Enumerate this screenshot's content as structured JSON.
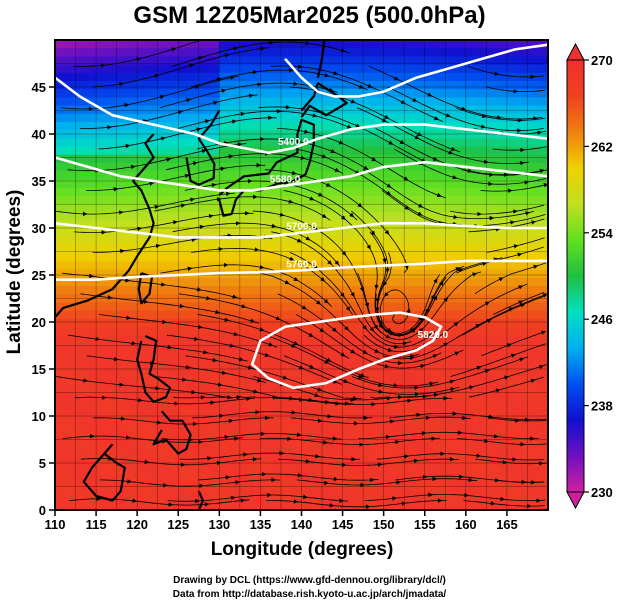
{
  "title": "GSM 12Z05Mar2025 (500.0hPa)",
  "credits": {
    "line1": "Drawing by DCL (https://www.gfd-dennou.org/library/dcl/)",
    "line2": "Data from http://database.rish.kyoto-u.ac.jp/arch/jmadata/"
  },
  "chart_data": {
    "type": "heatmap",
    "title": "GSM 12Z05Mar2025 (500.0hPa)",
    "xlabel": "Longitude (degrees)",
    "ylabel": "Latitude  (degrees)",
    "xlim": [
      110,
      170
    ],
    "ylim": [
      0,
      50
    ],
    "x_ticks": [
      110,
      115,
      120,
      125,
      130,
      135,
      140,
      145,
      150,
      155,
      160,
      165
    ],
    "y_ticks": [
      0,
      5,
      10,
      15,
      20,
      25,
      30,
      35,
      40,
      45
    ],
    "colorbar": {
      "min": 230,
      "max": 270,
      "ticks": [
        230,
        238,
        246,
        254,
        262,
        270
      ],
      "colors": [
        "#d020a0",
        "#7010c0",
        "#1010d0",
        "#0050f0",
        "#00b0f0",
        "#00e0c0",
        "#20c040",
        "#60e020",
        "#c0e020",
        "#f0d000",
        "#f08010",
        "#f04020",
        "#f03030"
      ]
    },
    "contours": [
      {
        "label": "5400.0",
        "points": [
          [
            110,
            46
          ],
          [
            113,
            44
          ],
          [
            117,
            42
          ],
          [
            122,
            41
          ],
          [
            127,
            40
          ],
          [
            130,
            39
          ],
          [
            133,
            38.5
          ],
          [
            136,
            38
          ],
          [
            139,
            38.5
          ],
          [
            142,
            39.5
          ],
          [
            146,
            40.5
          ],
          [
            150,
            41
          ],
          [
            155,
            41
          ],
          [
            160,
            40.5
          ],
          [
            165,
            40
          ],
          [
            170,
            39.5
          ]
        ]
      },
      {
        "label": "5580.0",
        "points": [
          [
            110,
            37.5
          ],
          [
            114,
            36.5
          ],
          [
            118,
            35.5
          ],
          [
            122,
            35
          ],
          [
            126,
            34.5
          ],
          [
            130,
            34
          ],
          [
            134,
            34
          ],
          [
            138,
            34.5
          ],
          [
            142,
            35
          ],
          [
            146,
            35.5
          ],
          [
            150,
            36.5
          ],
          [
            155,
            37
          ],
          [
            160,
            36.5
          ],
          [
            165,
            36
          ],
          [
            170,
            35.5
          ]
        ]
      },
      {
        "label": "5700.0",
        "points": [
          [
            110,
            30.5
          ],
          [
            115,
            30
          ],
          [
            120,
            29.5
          ],
          [
            125,
            29
          ],
          [
            130,
            29
          ],
          [
            135,
            29
          ],
          [
            140,
            29.5
          ],
          [
            145,
            30
          ],
          [
            150,
            30.5
          ],
          [
            155,
            30.5
          ],
          [
            160,
            30.2
          ],
          [
            165,
            30
          ],
          [
            170,
            30
          ]
        ]
      },
      {
        "label": "5760.0",
        "points": [
          [
            110,
            24.5
          ],
          [
            115,
            24.5
          ],
          [
            120,
            24.8
          ],
          [
            125,
            25
          ],
          [
            130,
            25.2
          ],
          [
            135,
            25.3
          ],
          [
            140,
            25.5
          ],
          [
            145,
            25.8
          ],
          [
            150,
            26
          ],
          [
            155,
            26.2
          ],
          [
            160,
            26.5
          ],
          [
            165,
            26.5
          ],
          [
            170,
            26.5
          ]
        ]
      },
      {
        "label": "5820.0",
        "closed": true,
        "points": [
          [
            135,
            18
          ],
          [
            138,
            19.5
          ],
          [
            142,
            20
          ],
          [
            146,
            20.5
          ],
          [
            149,
            20.8
          ],
          [
            152,
            21
          ],
          [
            155,
            20.5
          ],
          [
            157,
            19.5
          ],
          [
            156,
            18
          ],
          [
            154,
            17
          ],
          [
            150,
            16
          ],
          [
            147,
            15
          ],
          [
            143,
            13.5
          ],
          [
            139,
            13
          ],
          [
            136,
            14
          ],
          [
            134,
            15.5
          ]
        ]
      },
      {
        "label": "",
        "points": [
          [
            138,
            48
          ],
          [
            140,
            46
          ],
          [
            142,
            44.5
          ],
          [
            144,
            44
          ],
          [
            147,
            44
          ],
          [
            150,
            44.5
          ],
          [
            154,
            46
          ],
          [
            158,
            47
          ],
          [
            162,
            48
          ],
          [
            166,
            49
          ],
          [
            170,
            49.5
          ]
        ]
      }
    ]
  },
  "axes": {
    "x_tick_labels": [
      "110",
      "115",
      "120",
      "125",
      "130",
      "135",
      "140",
      "145",
      "150",
      "155",
      "160",
      "165"
    ],
    "y_tick_labels": [
      "0",
      "5",
      "10",
      "15",
      "20",
      "25",
      "30",
      "35",
      "40",
      "45"
    ],
    "colorbar_labels": [
      "230",
      "238",
      "246",
      "254",
      "262",
      "270"
    ]
  }
}
